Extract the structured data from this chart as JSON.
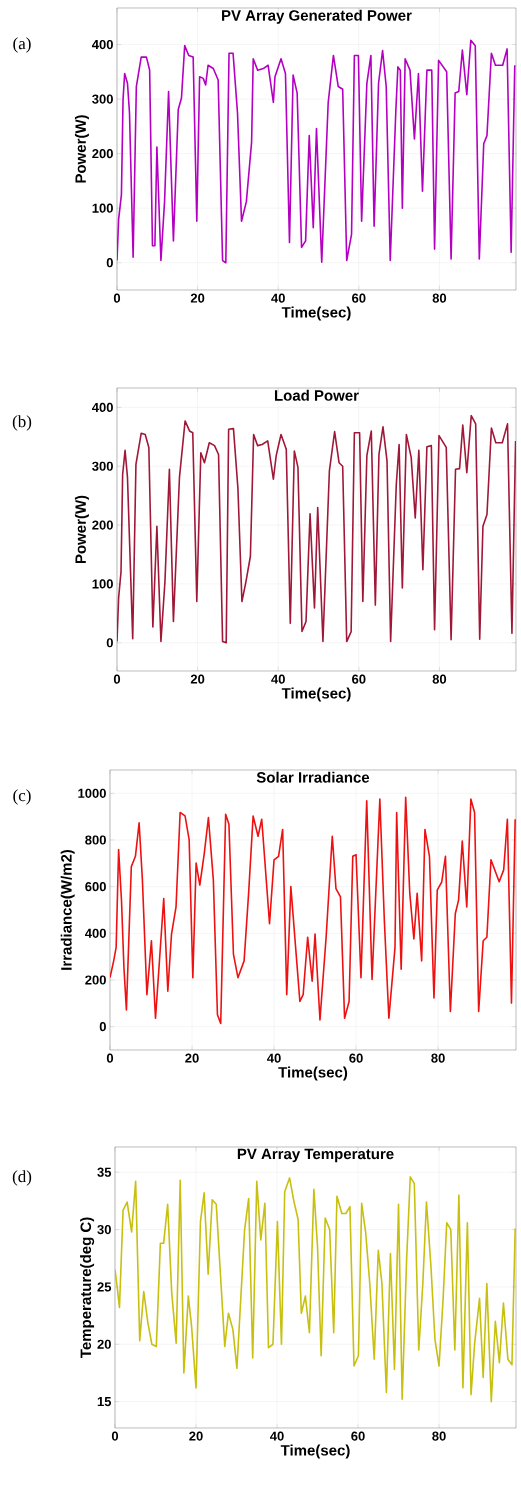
{
  "chart_data": [
    {
      "type": "line",
      "title": "PV Array Generated Power",
      "xlabel": "Time(sec)",
      "ylabel": "Power(W)",
      "annotations": [
        "(a)"
      ],
      "color": "#b400c0",
      "grid": true,
      "xlim": [
        0,
        99
      ],
      "ylim": [
        -50,
        467
      ],
      "xticks": [
        0,
        20,
        40,
        60,
        80
      ],
      "yticks": [
        0,
        100,
        200,
        300,
        400
      ],
      "x": [
        0,
        0.4,
        1.1,
        1.5,
        1.9,
        2.6,
        3.1,
        4.0,
        4.8,
        6.0,
        7.3,
        8.1,
        8.8,
        9.4,
        9.9,
        10.9,
        11.8,
        12.8,
        14.0,
        15.2,
        16.0,
        16.8,
        17.8,
        18.9,
        19.8,
        20.5,
        21.4,
        22.0,
        22.6,
        23.9,
        25.1,
        26.2,
        27.0,
        27.8,
        28.8,
        29.9,
        30.9,
        32.1,
        33.4,
        33.8,
        34.9,
        36.3,
        37.5,
        38.8,
        39.2,
        40.7,
        41.8,
        42.8,
        43.7,
        44.7,
        45.8,
        46.8,
        47.7,
        48.7,
        49.5,
        50.8,
        52.4,
        53.7,
        54.9,
        56.0,
        57.0,
        58.2,
        58.9,
        59.9,
        60.7,
        62.0,
        63.0,
        63.8,
        64.9,
        65.9,
        66.8,
        67.8,
        69.2,
        69.7,
        70.3,
        70.8,
        71.5,
        72.7,
        73.8,
        74.8,
        75.8,
        76.9,
        78.1,
        78.8,
        79.8,
        81.8,
        82.9,
        83.9,
        84.8,
        85.7,
        86.8,
        87.8,
        88.9,
        89.9,
        91.0,
        91.8,
        92.9,
        93.9,
        95.7,
        96.8,
        97.8,
        98.7
      ],
      "values": [
        4,
        79,
        125,
        299,
        347,
        329,
        275,
        10,
        323,
        377,
        377,
        353,
        31,
        31,
        212,
        4,
        112,
        314,
        40,
        281,
        302,
        398,
        380,
        377,
        76,
        341,
        338,
        326,
        362,
        356,
        335,
        4,
        0,
        384,
        384,
        275,
        76,
        112,
        221,
        374,
        353,
        356,
        362,
        294,
        341,
        374,
        347,
        37,
        344,
        311,
        28,
        40,
        233,
        64,
        246,
        1,
        293,
        380,
        323,
        318,
        4,
        52,
        380,
        380,
        76,
        329,
        380,
        67,
        329,
        389,
        323,
        4,
        281,
        359,
        353,
        100,
        374,
        353,
        227,
        347,
        131,
        353,
        353,
        25,
        371,
        350,
        7,
        311,
        314,
        390,
        308,
        408,
        398,
        7,
        218,
        233,
        384,
        362,
        362,
        392,
        19,
        362
      ]
    },
    {
      "type": "line",
      "title": "Load Power",
      "xlabel": "Time(sec)",
      "ylabel": "Power(W)",
      "annotations": [
        "(b)"
      ],
      "color": "#a01838",
      "grid": true,
      "xlim": [
        0,
        99
      ],
      "ylim": [
        -48,
        433
      ],
      "xticks": [
        0,
        20,
        40,
        60,
        80
      ],
      "yticks": [
        0,
        100,
        200,
        300,
        400
      ],
      "x": [
        0,
        0.4,
        1.0,
        1.4,
        2.0,
        2.6,
        3.9,
        4.7,
        6.0,
        7.0,
        7.9,
        8.9,
        9.9,
        10.9,
        11.9,
        13.0,
        14.0,
        15.5,
        16.9,
        18.0,
        18.8,
        19.8,
        20.8,
        21.7,
        22.9,
        24.2,
        25.2,
        26.2,
        27.1,
        27.7,
        28.9,
        30.0,
        31.0,
        32.0,
        33.1,
        33.9,
        34.9,
        36.0,
        37.4,
        38.8,
        39.5,
        40.7,
        42.0,
        43.0,
        44.0,
        44.9,
        45.9,
        46.9,
        47.9,
        49.0,
        49.8,
        51.1,
        52.7,
        54.0,
        55.1,
        56.0,
        57.0,
        58.1,
        58.9,
        60.2,
        61.0,
        62.0,
        63.1,
        64.1,
        65.0,
        66.0,
        67.0,
        67.9,
        69.3,
        70.0,
        70.8,
        71.8,
        73.0,
        74.0,
        74.9,
        75.9,
        76.9,
        78.0,
        78.8,
        79.9,
        81.7,
        82.9,
        84.0,
        85.0,
        85.8,
        86.8,
        87.9,
        89.0,
        90.0,
        90.8,
        91.8,
        92.9,
        94.0,
        95.6,
        96.9,
        98.0,
        98.9
      ],
      "values": [
        2,
        76,
        121,
        286,
        327,
        281,
        7,
        303,
        356,
        354,
        332,
        27,
        198,
        2,
        104,
        295,
        36,
        281,
        377,
        360,
        357,
        70,
        323,
        306,
        340,
        335,
        320,
        2,
        0,
        363,
        364,
        263,
        70,
        104,
        147,
        354,
        335,
        337,
        343,
        278,
        318,
        354,
        329,
        33,
        326,
        298,
        19,
        36,
        219,
        59,
        230,
        2,
        292,
        359,
        306,
        300,
        2,
        19,
        357,
        357,
        70,
        318,
        360,
        64,
        320,
        367,
        309,
        2,
        269,
        337,
        93,
        354,
        315,
        212,
        327,
        124,
        333,
        335,
        22,
        352,
        332,
        5,
        295,
        296,
        370,
        289,
        386,
        372,
        6,
        198,
        218,
        365,
        340,
        340,
        372,
        16,
        343
      ]
    },
    {
      "type": "line",
      "title": "Solar Irradiance",
      "xlabel": "Time(sec)",
      "ylabel": "Irradiance(W/m2)",
      "annotations": [
        "(c)"
      ],
      "color": "#ee1111",
      "grid": true,
      "xlim": [
        0,
        99
      ],
      "ylim": [
        -100,
        1100
      ],
      "xticks": [
        0,
        20,
        40,
        60,
        80
      ],
      "yticks": [
        0,
        200,
        400,
        600,
        800,
        1000
      ],
      "x": [
        0,
        0.9,
        1.5,
        2.1,
        2.8,
        3.4,
        4.0,
        5.2,
        6.2,
        7.1,
        7.9,
        9.0,
        10.1,
        11.1,
        13.1,
        14.1,
        15.0,
        16.1,
        17.1,
        18.3,
        19.3,
        20.2,
        21.0,
        21.9,
        23.0,
        24.0,
        25.2,
        26.2,
        27.0,
        28.2,
        29.0,
        30.1,
        31.2,
        32.7,
        33.8,
        34.9,
        36.1,
        37.0,
        38.9,
        40.0,
        41.1,
        42.1,
        43.1,
        44.1,
        46.3,
        47.1,
        48.2,
        49.3,
        50.0,
        51.2,
        52.7,
        54.2,
        55.1,
        56.2,
        57.2,
        58.3,
        59.2,
        60.0,
        61.2,
        62.6,
        63.9,
        65.8,
        66.9,
        68.0,
        69.5,
        69.9,
        71.0,
        72.1,
        73.1,
        74.1,
        74.9,
        76.0,
        76.8,
        77.9,
        79.0,
        79.8,
        80.9,
        81.8,
        83.0,
        84.2,
        85.0,
        85.9,
        87.0,
        88.0,
        88.9,
        89.9,
        91.0,
        91.9,
        92.9,
        94.9,
        96.0,
        96.9,
        97.9,
        98.8
      ],
      "values": [
        210,
        282,
        340,
        759,
        542,
        253,
        72,
        686,
        730,
        874,
        629,
        137,
        368,
        36,
        549,
        152,
        397,
        513,
        918,
        903,
        802,
        210,
        701,
        607,
        744,
        896,
        629,
        51,
        14,
        910,
        867,
        311,
        210,
        282,
        571,
        903,
        816,
        889,
        441,
        715,
        730,
        845,
        137,
        600,
        108,
        137,
        383,
        195,
        397,
        29,
        383,
        816,
        592,
        556,
        36,
        108,
        730,
        737,
        210,
        968,
        202,
        975,
        455,
        36,
        340,
        918,
        246,
        983,
        571,
        376,
        571,
        282,
        845,
        730,
        123,
        585,
        621,
        730,
        65,
        484,
        542,
        795,
        513,
        975,
        918,
        65,
        368,
        383,
        715,
        621,
        672,
        889,
        101,
        889
      ]
    },
    {
      "type": "line",
      "title": "PV Array Temperature",
      "xlabel": "Time(sec)",
      "ylabel": "Temperature(deg C)",
      "annotations": [
        "(d)"
      ],
      "color": "#c8c010",
      "grid": true,
      "xlim": [
        0,
        99
      ],
      "ylim": [
        12.7,
        37.2
      ],
      "xticks": [
        0,
        20,
        40,
        60,
        80
      ],
      "yticks": [
        15,
        20,
        25,
        30,
        35
      ],
      "x": [
        0,
        0.6,
        1.1,
        2.0,
        3.0,
        4.1,
        5.1,
        6.1,
        7.1,
        8.1,
        9.1,
        10.2,
        11.2,
        12.0,
        13.0,
        14.0,
        15.1,
        16.1,
        17.0,
        18.1,
        18.9,
        20.0,
        21.1,
        22.0,
        23.0,
        24.0,
        25.0,
        27.1,
        28.0,
        29.1,
        30.1,
        32.0,
        33.0,
        34.0,
        35.0,
        36.0,
        37.0,
        37.9,
        39.0,
        40.1,
        41.1,
        41.9,
        43.1,
        44.2,
        45.2,
        46.0,
        47.0,
        48.0,
        49.1,
        50.0,
        50.9,
        51.9,
        53.0,
        54.0,
        54.8,
        56.0,
        57.0,
        58.0,
        59.0,
        60.1,
        60.9,
        61.9,
        62.9,
        64.0,
        65.0,
        65.9,
        67.0,
        68.0,
        69.0,
        70.0,
        70.9,
        72.0,
        72.9,
        73.9,
        75.0,
        76.0,
        76.9,
        78.0,
        79.0,
        80.0,
        81.0,
        81.9,
        82.9,
        83.9,
        84.9,
        85.9,
        87.0,
        87.9,
        88.8,
        90.0,
        90.9,
        91.8,
        92.9,
        93.9,
        94.9,
        95.9,
        97.0,
        98.0,
        98.8
      ],
      "values": [
        26.5,
        24.8,
        23.2,
        31.7,
        32.4,
        29.8,
        34.2,
        20.3,
        24.6,
        21.9,
        20.0,
        19.8,
        28.8,
        28.8,
        32.2,
        24.5,
        20.1,
        34.3,
        17.5,
        24.2,
        21.6,
        16.2,
        30.7,
        33.2,
        26.1,
        32.6,
        32.2,
        19.8,
        22.7,
        21.3,
        17.9,
        30.0,
        32.7,
        18.8,
        34.2,
        29.1,
        32.3,
        19.7,
        20.0,
        30.7,
        20.0,
        33.3,
        34.5,
        32.4,
        30.9,
        22.7,
        24.2,
        21.0,
        33.5,
        28.5,
        19.0,
        31.0,
        30.0,
        21.0,
        32.9,
        31.4,
        31.4,
        32.0,
        18.1,
        19.0,
        32.3,
        29.7,
        25.3,
        18.7,
        28.2,
        25.3,
        15.8,
        27.9,
        17.8,
        32.2,
        15.2,
        27.4,
        34.6,
        34.0,
        19.5,
        25.3,
        32.4,
        26.8,
        20.4,
        18.1,
        23.9,
        30.6,
        30.0,
        19.5,
        33.0,
        16.2,
        30.6,
        15.6,
        20.1,
        24.0,
        17.1,
        25.3,
        15.0,
        22.0,
        18.4,
        23.6,
        18.7,
        18.2,
        30.1
      ]
    }
  ]
}
